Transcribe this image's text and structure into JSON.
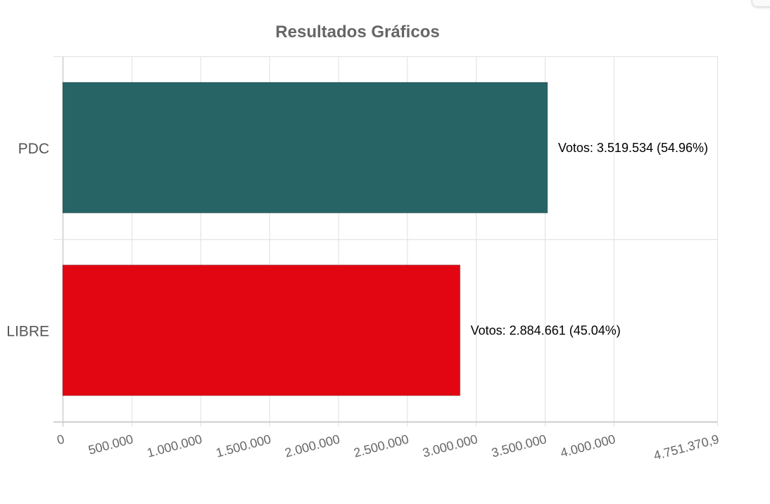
{
  "chart_data": {
    "type": "bar",
    "orientation": "horizontal",
    "title": "Resultados Gráficos",
    "categories": [
      "PDC",
      "LIBRE"
    ],
    "values": [
      3519534,
      2884661
    ],
    "colors": [
      "#276466",
      "#e20613"
    ],
    "data_labels": [
      "Votos: 3.519.534 (54.96%)",
      "Votos: 2.884.661 (45.04%)"
    ],
    "xlim": [
      0,
      4751370.9
    ],
    "x_ticks": [
      0,
      500000,
      1000000,
      1500000,
      2000000,
      2500000,
      3000000,
      3500000,
      4000000,
      4751370.9
    ],
    "x_tick_labels": [
      "0",
      "500.000",
      "1.000.000",
      "1.500.000",
      "2.000.000",
      "2.500.000",
      "3.000.000",
      "3.500.000",
      "4.000.000",
      "4.751.370,9"
    ],
    "grid": true,
    "legend": "none"
  }
}
